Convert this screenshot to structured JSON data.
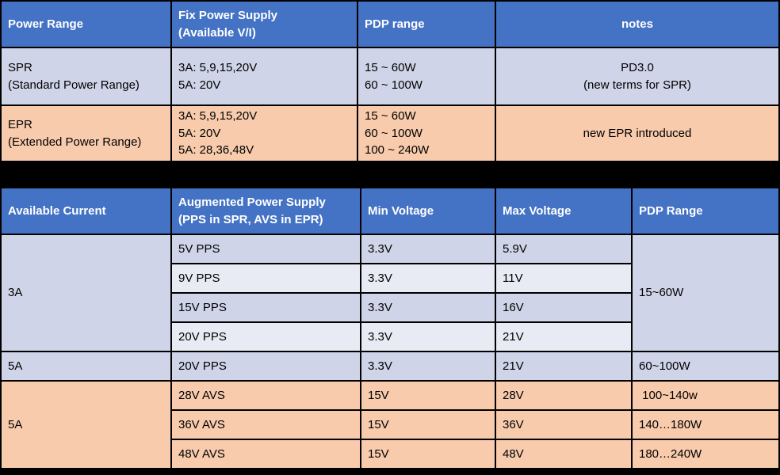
{
  "colors": {
    "header_bg": "#4472C4",
    "header_text": "#FFFFFF",
    "row_lavender": "#D0D4E8",
    "row_lavender_light": "#E9EBF4",
    "row_salmon": "#F8CBAD",
    "grid_line": "#FFFFFF",
    "page_bg": "#000000",
    "body_text": "#000000"
  },
  "table1": {
    "headers": [
      "Power Range",
      "Fix Power Supply\n(Available V/I)",
      "PDP range",
      "notes"
    ],
    "rows": [
      {
        "power_range": "SPR\n(Standard Power Range)",
        "fix_power_supply": "3A: 5,9,15,20V\n5A: 20V",
        "pdp_range": "15 ~ 60W\n60 ~ 100W",
        "notes": "PD3.0\n(new terms for SPR)"
      },
      {
        "power_range": "EPR\n(Extended Power Range)",
        "fix_power_supply": "3A: 5,9,15,20V\n5A: 20V\n5A: 28,36,48V",
        "pdp_range": "15 ~ 60W\n60 ~ 100W\n100 ~ 240W",
        "notes": "new EPR introduced"
      }
    ]
  },
  "table2": {
    "headers": [
      "Available Current",
      "Augmented Power Supply\n(PPS in SPR, AVS in EPR)",
      "Min Voltage",
      "Max Voltage",
      "PDP Range"
    ],
    "current_3a": "3A",
    "current_5a_pps": "5A",
    "current_5a_avs": "5A",
    "pdp_merged_3a": "15~60W",
    "rows": [
      {
        "supply": "5V PPS",
        "min": "3.3V",
        "max": "5.9V"
      },
      {
        "supply": "9V PPS",
        "min": "3.3V",
        "max": "11V"
      },
      {
        "supply": "15V PPS",
        "min": "3.3V",
        "max": "16V"
      },
      {
        "supply": "20V PPS",
        "min": "3.3V",
        "max": "21V"
      },
      {
        "supply": "20V PPS",
        "min": "3.3V",
        "max": "21V",
        "pdp": "60~100W"
      },
      {
        "supply": "28V AVS",
        "min": "15V",
        "max": "28V",
        "pdp": " 100~140w"
      },
      {
        "supply": "36V AVS",
        "min": "15V",
        "max": "36V",
        "pdp": "140…180W"
      },
      {
        "supply": "48V AVS",
        "min": "15V",
        "max": "48V",
        "pdp": "180…240W"
      }
    ]
  }
}
